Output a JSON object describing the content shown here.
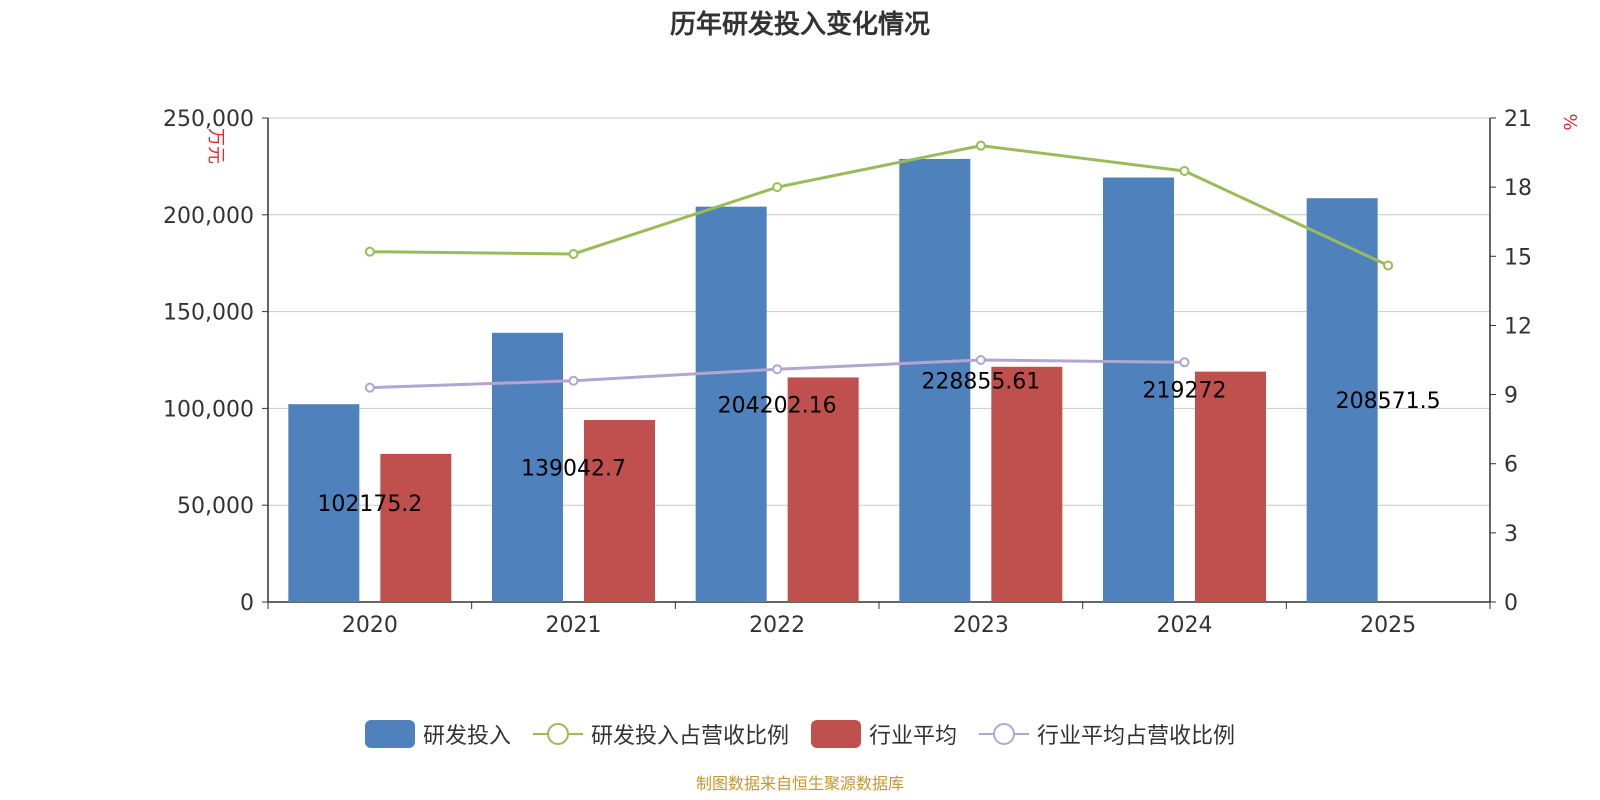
{
  "title": "历年研发投入变化情况",
  "source": "制图数据来自恒生聚源数据库",
  "chart_data": {
    "type": "bar",
    "categories": [
      "2020",
      "2021",
      "2022",
      "2023",
      "2024",
      "2025"
    ],
    "left_axis": {
      "unit": "万元",
      "ylim": [
        0,
        250000
      ],
      "ticks": [
        "0",
        "50,000",
        "100,000",
        "150,000",
        "200,000",
        "250,000"
      ]
    },
    "right_axis": {
      "unit": "%",
      "ylim": [
        0,
        21
      ],
      "ticks": [
        "0",
        "3",
        "6",
        "9",
        "12",
        "15",
        "18",
        "21"
      ]
    },
    "series": [
      {
        "name": "研发投入",
        "type": "bar",
        "axis": "left",
        "color": "#4f81bd",
        "values": [
          102175.2,
          139042.7,
          204202.16,
          228855.61,
          219272,
          208571.5
        ],
        "labels": [
          "102175.2",
          "139042.7",
          "204202.16",
          "228855.61",
          "219272",
          "208571.5"
        ]
      },
      {
        "name": "研发投入占营收比例",
        "type": "line",
        "axis": "right",
        "color": "#9bbb59",
        "values": [
          15.2,
          15.1,
          18.0,
          19.8,
          18.7,
          14.6
        ]
      },
      {
        "name": "行业平均",
        "type": "bar",
        "axis": "left",
        "color": "#c0504d",
        "values": [
          76500,
          94000,
          116000,
          121500,
          119000,
          null
        ]
      },
      {
        "name": "行业平均占营收比例",
        "type": "line",
        "axis": "right",
        "color": "#b3a5d2",
        "values": [
          9.3,
          9.6,
          10.1,
          10.5,
          10.4,
          null
        ]
      }
    ],
    "legend_position": "bottom"
  }
}
